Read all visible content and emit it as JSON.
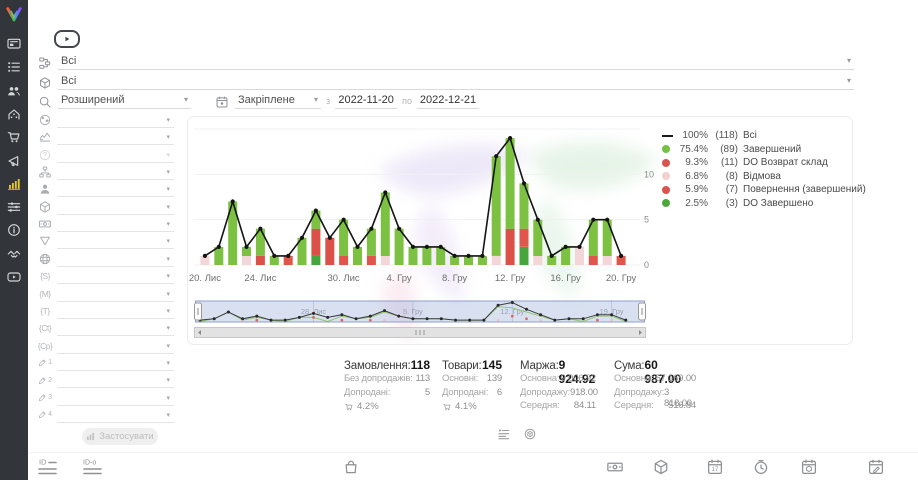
{
  "topbar": {
    "status_filter_value": "Всі",
    "product_filter_value": "Всі",
    "search_mode_value": "Розширений",
    "period_type_value": "Закріплене",
    "from_label": "з",
    "date_from": "2022-11-20",
    "to_label": "по",
    "date_to": "2022-12-21"
  },
  "sidebar": {
    "items": [
      {
        "icon": "dashboard-icon"
      },
      {
        "icon": "orders-list-icon"
      },
      {
        "icon": "customers-icon"
      },
      {
        "icon": "company-icon"
      },
      {
        "icon": "purchases-cart-icon"
      },
      {
        "icon": "marketing-megaphone-icon"
      },
      {
        "icon": "analytics-chart-icon",
        "active": true
      },
      {
        "icon": "settings-sliders-icon"
      },
      {
        "icon": "info-icon"
      },
      {
        "icon": "partners-handshake-icon"
      },
      {
        "icon": "video-tutorials-icon"
      }
    ]
  },
  "filter_panel": {
    "rows": [
      {
        "icon": "globe-icon"
      },
      {
        "icon": "trend-icon"
      },
      {
        "icon": "help-icon",
        "disabled": true
      },
      {
        "icon": "sitemap-icon"
      },
      {
        "icon": "user-icon"
      },
      {
        "icon": "cube-icon"
      },
      {
        "icon": "banknote-icon"
      },
      {
        "icon": "funnel-icon"
      },
      {
        "icon": "web-icon"
      },
      {
        "icon": "utm-source-icon",
        "badge": "{S}"
      },
      {
        "icon": "utm-medium-icon",
        "badge": "{M}"
      },
      {
        "icon": "utm-term-icon",
        "badge": "{T}"
      },
      {
        "icon": "utm-content-icon",
        "badge": "{Ct}"
      },
      {
        "icon": "utm-campaign-icon",
        "badge": "{Cp}"
      },
      {
        "icon": "custom-field-icon",
        "pencil": "1"
      },
      {
        "icon": "custom-field-icon",
        "pencil": "2"
      },
      {
        "icon": "custom-field-icon",
        "pencil": "3"
      },
      {
        "icon": "custom-field-icon",
        "pencil": "4"
      }
    ],
    "apply_label": "Застосувати"
  },
  "legend": [
    {
      "swatch": "line",
      "color": "#1a1a1a",
      "percent": "100%",
      "count": "(118)",
      "label": "Всі"
    },
    {
      "swatch": "dot",
      "color": "#76c043",
      "percent": "75.4%",
      "count": "(89)",
      "label": "Завершений"
    },
    {
      "swatch": "dot",
      "color": "#d9534f",
      "percent": "9.3%",
      "count": "(11)",
      "label": "DO Возврат склад"
    },
    {
      "swatch": "dot",
      "color": "#f2d0d2",
      "percent": "6.8%",
      "count": "(8)",
      "label": "Відмова"
    },
    {
      "swatch": "dot",
      "color": "#d9534f",
      "percent": "5.9%",
      "count": "(7)",
      "label": "Повернення (завершений)"
    },
    {
      "swatch": "dot",
      "color": "#4ea83e",
      "percent": "2.5%",
      "count": "(3)",
      "label": "DO Завершено"
    }
  ],
  "chart_data": {
    "type": "bar+line",
    "title": "",
    "ylim": [
      0,
      15
    ],
    "yticks": [
      0,
      5,
      10
    ],
    "grid": true,
    "legend_position": "right",
    "x_tick_labels": [
      "20. Лис",
      "24. Лис",
      "30. Лис",
      "4. Гру",
      "8. Гру",
      "12. Гру",
      "16. Гру",
      "20. Гру"
    ],
    "x_tick_indices": [
      0,
      4,
      10,
      14,
      18,
      22,
      26,
      30
    ],
    "line_series_name": "Всі",
    "statuses": {
      "zav": {
        "label": "Завершений",
        "color": "#7cc142"
      },
      "vozvrat": {
        "label": "DO Возврат склад",
        "color": "#dc5147"
      },
      "vidmova": {
        "label": "Відмова",
        "color": "#f3d6d8"
      },
      "povern": {
        "label": "Повернення (завершений)",
        "color": "#e0564b"
      },
      "dozav": {
        "label": "DO Завершено",
        "color": "#46a53c"
      }
    },
    "days": [
      {
        "date": "2022-11-20",
        "total": 1,
        "seg": [
          [
            "vidmova",
            1
          ]
        ]
      },
      {
        "date": "2022-11-21",
        "total": 2,
        "seg": [
          [
            "zav",
            2
          ]
        ]
      },
      {
        "date": "2022-11-22",
        "total": 7,
        "seg": [
          [
            "zav",
            7
          ]
        ]
      },
      {
        "date": "2022-11-23",
        "total": 2,
        "seg": [
          [
            "vidmova",
            1
          ],
          [
            "zav",
            1
          ]
        ]
      },
      {
        "date": "2022-11-24",
        "total": 4,
        "seg": [
          [
            "vozvrat",
            1
          ],
          [
            "zav",
            3
          ]
        ]
      },
      {
        "date": "2022-11-25",
        "total": 1,
        "seg": [
          [
            "zav",
            1
          ]
        ]
      },
      {
        "date": "2022-11-26",
        "total": 1,
        "seg": [
          [
            "povern",
            1
          ]
        ]
      },
      {
        "date": "2022-11-27",
        "total": 3,
        "seg": [
          [
            "zav",
            3
          ]
        ]
      },
      {
        "date": "2022-11-28",
        "total": 6,
        "seg": [
          [
            "dozav",
            1
          ],
          [
            "vozvrat",
            3
          ],
          [
            "zav",
            2
          ]
        ]
      },
      {
        "date": "2022-11-29",
        "total": 3,
        "seg": [
          [
            "vozvrat",
            3
          ]
        ]
      },
      {
        "date": "2022-11-30",
        "total": 5,
        "seg": [
          [
            "povern",
            1
          ],
          [
            "zav",
            4
          ]
        ]
      },
      {
        "date": "2022-12-01",
        "total": 2,
        "seg": [
          [
            "zav",
            2
          ]
        ]
      },
      {
        "date": "2022-12-02",
        "total": 4,
        "seg": [
          [
            "povern",
            1
          ],
          [
            "zav",
            3
          ]
        ]
      },
      {
        "date": "2022-12-03",
        "total": 8,
        "seg": [
          [
            "vidmova",
            1
          ],
          [
            "zav",
            7
          ]
        ]
      },
      {
        "date": "2022-12-04",
        "total": 4,
        "seg": [
          [
            "zav",
            4
          ]
        ]
      },
      {
        "date": "2022-12-05",
        "total": 2,
        "seg": [
          [
            "zav",
            2
          ]
        ]
      },
      {
        "date": "2022-12-06",
        "total": 2,
        "seg": [
          [
            "zav",
            2
          ]
        ]
      },
      {
        "date": "2022-12-07",
        "total": 2,
        "seg": [
          [
            "zav",
            2
          ]
        ]
      },
      {
        "date": "2022-12-08",
        "total": 1,
        "seg": [
          [
            "zav",
            1
          ]
        ]
      },
      {
        "date": "2022-12-09",
        "total": 1,
        "seg": [
          [
            "zav",
            1
          ]
        ]
      },
      {
        "date": "2022-12-10",
        "total": 1,
        "seg": [
          [
            "zav",
            1
          ]
        ]
      },
      {
        "date": "2022-12-11",
        "total": 12,
        "seg": [
          [
            "vidmova",
            1
          ],
          [
            "zav",
            11
          ]
        ]
      },
      {
        "date": "2022-12-12",
        "total": 14,
        "seg": [
          [
            "vozvrat",
            4
          ],
          [
            "zav",
            10
          ]
        ]
      },
      {
        "date": "2022-12-13",
        "total": 9,
        "seg": [
          [
            "dozav",
            2
          ],
          [
            "povern",
            2
          ],
          [
            "zav",
            5
          ]
        ]
      },
      {
        "date": "2022-12-14",
        "total": 5,
        "seg": [
          [
            "vidmova",
            1
          ],
          [
            "zav",
            4
          ]
        ]
      },
      {
        "date": "2022-12-15",
        "total": 1,
        "seg": [
          [
            "zav",
            1
          ]
        ]
      },
      {
        "date": "2022-12-16",
        "total": 2,
        "seg": [
          [
            "zav",
            2
          ]
        ]
      },
      {
        "date": "2022-12-17",
        "total": 2,
        "seg": [
          [
            "vidmova",
            2
          ]
        ]
      },
      {
        "date": "2022-12-18",
        "total": 5,
        "seg": [
          [
            "povern",
            1
          ],
          [
            "zav",
            4
          ]
        ]
      },
      {
        "date": "2022-12-19",
        "total": 5,
        "seg": [
          [
            "vidmova",
            1
          ],
          [
            "zav",
            4
          ]
        ]
      },
      {
        "date": "2022-12-20",
        "total": 1,
        "seg": [
          [
            "povern",
            1
          ]
        ]
      }
    ],
    "minimap": {
      "labels": [
        "28. Лис",
        "5. Гру",
        "12. Гру",
        "19. Гру"
      ],
      "label_indices": [
        8,
        15,
        22,
        29
      ]
    }
  },
  "stats": {
    "columns": [
      {
        "title": "Замовлення:",
        "value": "118",
        "rows": [
          {
            "label": "Без допродажів:",
            "value": "113"
          },
          {
            "label": "Допродані:",
            "value": "5"
          }
        ],
        "cart_percent": "4.2%"
      },
      {
        "title": "Товари:",
        "value": "145",
        "rows": [
          {
            "label": "Основні:",
            "value": "139"
          },
          {
            "label": "Допродані:",
            "value": "6"
          }
        ],
        "cart_percent": "4.1%"
      },
      {
        "title": "Маржа:",
        "value": "9 924.92",
        "rows": [
          {
            "label": "Основна:",
            "value": "9 006.92"
          },
          {
            "label": "Допродажу:",
            "value": "918.00"
          },
          {
            "label": "Середня:",
            "value": "84.11"
          }
        ]
      },
      {
        "title": "Сума:",
        "value": "60 987.00",
        "rows": [
          {
            "label": "Основна:",
            "value": "57 169.00"
          },
          {
            "label": "Допродажу:",
            "value": "3 818.00"
          },
          {
            "label": "Середня:",
            "value": "516.84"
          }
        ]
      }
    ],
    "actions": [
      {
        "icon": "list-view-icon"
      },
      {
        "icon": "sphere-cube-icon"
      }
    ]
  },
  "bottom_toolbar": {
    "icons": [
      {
        "icon": "id-lines-icon"
      },
      {
        "icon": "id-o-lines-icon"
      },
      {
        "icon": "bag-icon"
      },
      {
        "icon": "banknote-icon"
      },
      {
        "icon": "cube-icon"
      },
      {
        "icon": "calendar-date-icon",
        "glyph": "17"
      },
      {
        "icon": "clock-icon"
      },
      {
        "icon": "calendar-cube-icon"
      },
      {
        "icon": "calendar-edit-icon"
      }
    ]
  }
}
